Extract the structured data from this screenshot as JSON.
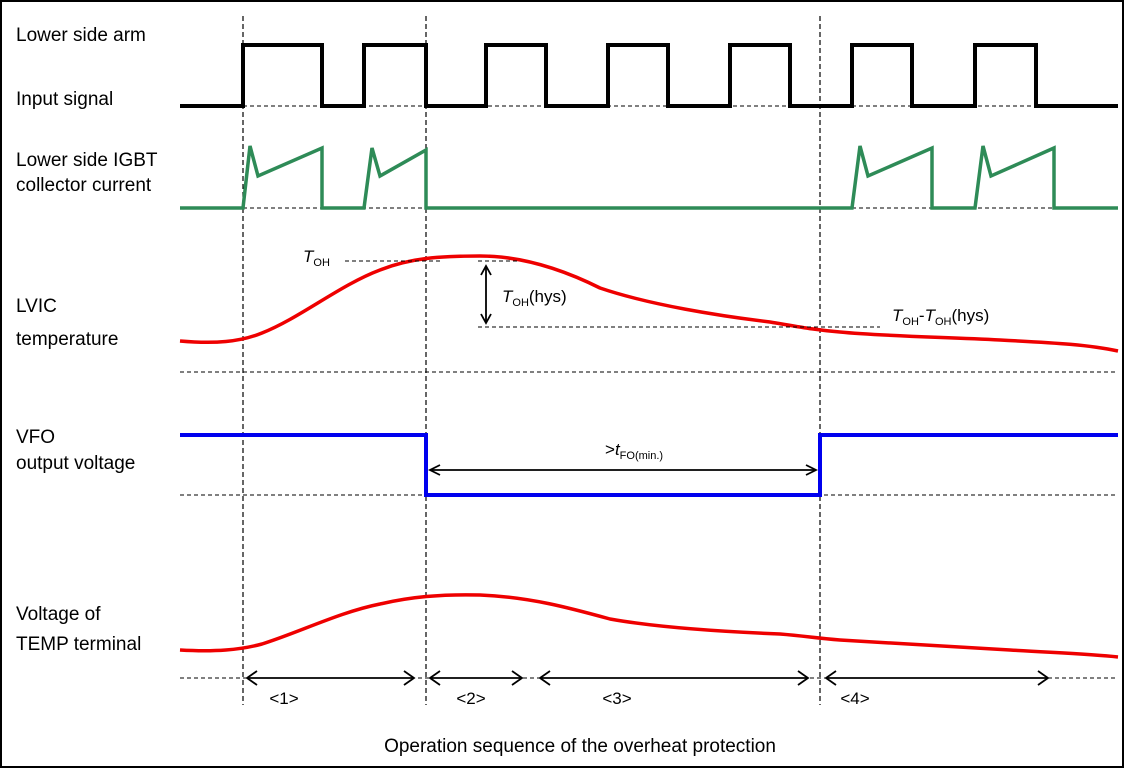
{
  "signals": {
    "input_signal": {
      "line1": "Lower side arm",
      "line2": "Input signal",
      "color": "#000000"
    },
    "collector_current": {
      "line1": "Lower side IGBT",
      "line2": "collector current",
      "color": "#2e8b57"
    },
    "lvic_temperature": {
      "line1": "LVIC",
      "line2": "temperature",
      "color": "#ee0000"
    },
    "vfo": {
      "line1": "VFO",
      "line2": "output voltage",
      "color": "#0000ee"
    },
    "temp_terminal": {
      "line1": "Voltage of",
      "line2": "TEMP terminal",
      "color": "#ee0000"
    }
  },
  "annotations": {
    "toh": {
      "main": "T",
      "sub": "OH"
    },
    "toh_hys": {
      "main": "T",
      "sub": "OH",
      "suffix": "(hys)"
    },
    "toh_minus_hys": {
      "main1": "T",
      "sub1": "OH",
      "dash": "-",
      "main2": "T",
      "sub2": "OH",
      "suffix": "(hys)"
    },
    "tfo_min": {
      "prefix": ">",
      "main": "t",
      "sub": "FO(min.)"
    }
  },
  "periods": [
    "<1>",
    "<2>",
    "<3>",
    "<4>"
  ],
  "caption": "Operation sequence of the overheat protection"
}
